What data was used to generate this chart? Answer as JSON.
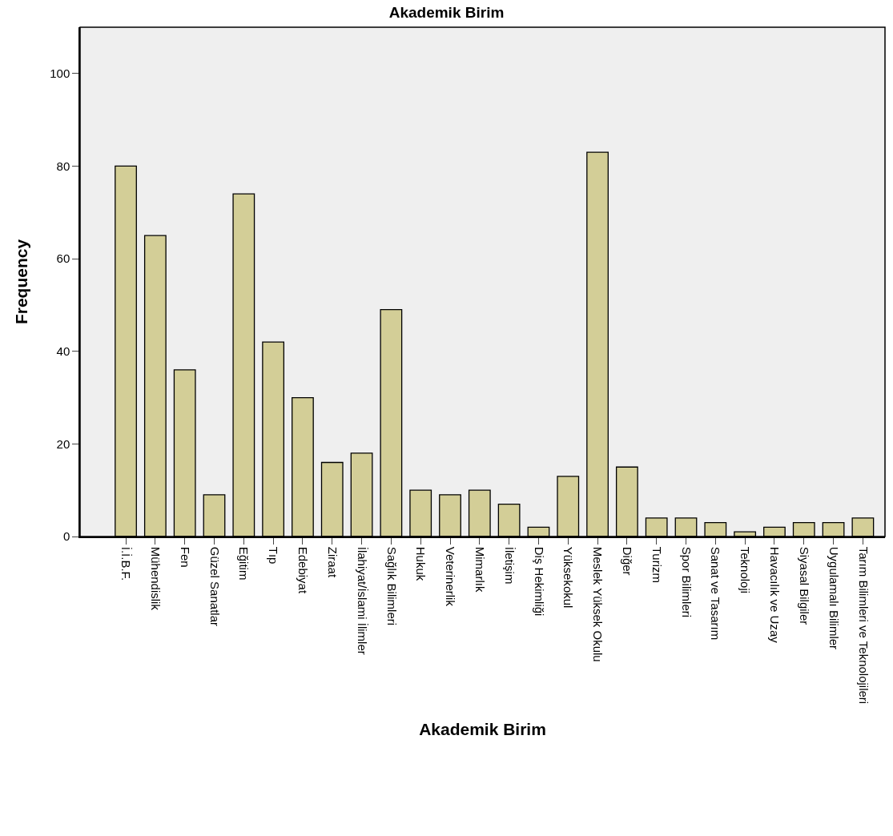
{
  "chart_data": {
    "type": "bar",
    "title": "Akademik Birim",
    "xlabel": "Akademik Birim",
    "ylabel": "Frequency",
    "categories": [
      "İ.İ.B.F.",
      "Mühendislik",
      "Fen",
      "Güzel Sanatlar",
      "Eğitim",
      "Tıp",
      "Edebiyat",
      "Ziraat",
      "İlahiyat/İslami İlimler",
      "Sağlık Bilimleri",
      "Hukuk",
      "Veterinerlik",
      "Mimarlık",
      "İletişim",
      "Diş Hekimliği",
      "Yüksekokul",
      "Meslek Yüksek Okulu",
      "Diğer",
      "Turizm",
      "Spor Bilimleri",
      "Sanat ve Tasarım",
      "Teknoloji",
      "Havacılık ve Uzay",
      "Siyasal Bilgiler",
      "Uygulamalı Bilimler",
      "Tarım Bilimleri ve Teknolojileri"
    ],
    "values": [
      80,
      65,
      36,
      9,
      74,
      42,
      30,
      16,
      18,
      49,
      10,
      9,
      10,
      7,
      2,
      13,
      83,
      15,
      4,
      4,
      3,
      1,
      2,
      3,
      3,
      4
    ],
    "color": "#d3ce97",
    "ylim": [
      0,
      110
    ],
    "yticks": [
      0,
      20,
      40,
      60,
      80,
      100
    ],
    "grid": false
  }
}
